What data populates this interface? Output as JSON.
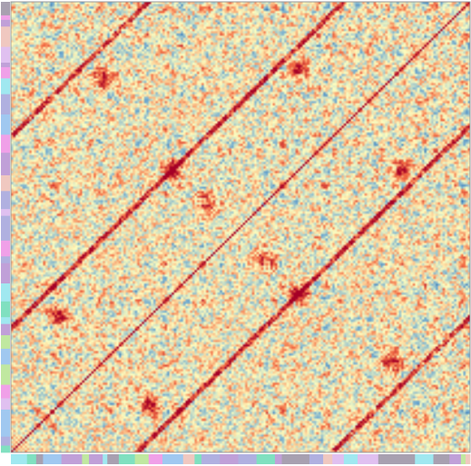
{
  "chart_data": {
    "type": "heatmap",
    "title": "",
    "xlabel": "",
    "ylabel": "",
    "size": 200,
    "matrix": "symmetric",
    "value_range": [
      -1,
      1
    ],
    "diagonal_value": 1,
    "colormap": "RdYlBu_r",
    "colormap_stops": [
      {
        "value": -1.0,
        "color": "#2166ac"
      },
      {
        "value": -0.5,
        "color": "#74add1"
      },
      {
        "value": 0.0,
        "color": "#ffffbf"
      },
      {
        "value": 0.5,
        "color": "#f46d43"
      },
      {
        "value": 1.0,
        "color": "#a50026"
      }
    ],
    "row_annotation_bar": "left",
    "column_annotation_bar": "bottom",
    "annotation_palette": [
      "#c0a0d8",
      "#f0a0e8",
      "#a0e8f0",
      "#80e0c0",
      "#a0c8f0",
      "#e0c0f0",
      "#a8a0b0",
      "#c0e8a0",
      "#f0c8c0",
      "#b0b0e0"
    ],
    "off_diagonal_bands": [
      {
        "offset": 55,
        "strength": 0.45
      },
      {
        "offset": -55,
        "strength": 0.45
      },
      {
        "offset": 140,
        "strength": 0.4
      },
      {
        "offset": -140,
        "strength": 0.4
      }
    ],
    "hotspots": [
      {
        "row": 20,
        "col": 60,
        "value": 0.85
      },
      {
        "row": 60,
        "col": 20,
        "value": 0.85
      },
      {
        "row": 40,
        "col": 165,
        "value": 0.8
      },
      {
        "row": 165,
        "col": 40,
        "value": 0.8
      },
      {
        "row": 125,
        "col": 70,
        "value": 0.85
      },
      {
        "row": 70,
        "col": 125,
        "value": 0.85
      },
      {
        "row": 125,
        "col": 170,
        "value": 0.8
      },
      {
        "row": 170,
        "col": 125,
        "value": 0.8
      },
      {
        "row": 85,
        "col": 110,
        "value": 0.7
      },
      {
        "row": 110,
        "col": 85,
        "value": 0.7
      }
    ],
    "background": "#ffffff"
  }
}
